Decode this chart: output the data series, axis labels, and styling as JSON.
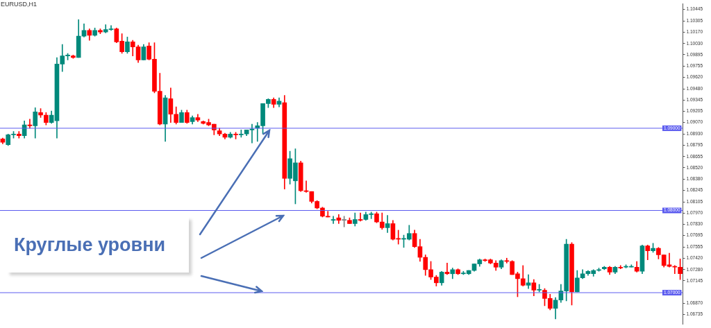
{
  "chart_data": {
    "type": "candlestick",
    "title": "EURUSD,H1",
    "categories": [
      null,
      null,
      null,
      null,
      null,
      null,
      null,
      null,
      null,
      null,
      null,
      null,
      null,
      null,
      null,
      null,
      null,
      null,
      null,
      null,
      null,
      null,
      null,
      null,
      null,
      null,
      null,
      null,
      null,
      null,
      null,
      null,
      null,
      null,
      null,
      null,
      null,
      null,
      null,
      null,
      null,
      null,
      null,
      null,
      null,
      null,
      null,
      null,
      null,
      null,
      null,
      null,
      null,
      null,
      null,
      null,
      null,
      null,
      null,
      null,
      null,
      null,
      null,
      null,
      null,
      null,
      null,
      null,
      null,
      null,
      null,
      null,
      null,
      null,
      null,
      null,
      null,
      null,
      null,
      null,
      null,
      null,
      null,
      null,
      null,
      null,
      null,
      null,
      null,
      null,
      null,
      null,
      null,
      null,
      null,
      null,
      null,
      null,
      null,
      null,
      null,
      null,
      null,
      null,
      null,
      null,
      null,
      null,
      null,
      null,
      null,
      null,
      null,
      null,
      null,
      null,
      null,
      null,
      null,
      null,
      null,
      null,
      null,
      null,
      null,
      null
    ],
    "ohlc": [
      [
        1.0887,
        1.0888,
        1.0881,
        1.0883
      ],
      [
        1.088,
        1.0893,
        1.0879,
        1.0892
      ],
      [
        1.0892,
        1.0896,
        1.0888,
        1.0893
      ],
      [
        1.0893,
        1.0896,
        1.0888,
        1.0891
      ],
      [
        1.0891,
        1.0909,
        1.0888,
        1.0904
      ],
      [
        1.0904,
        1.0911,
        1.09,
        1.0903
      ],
      [
        1.0903,
        1.0925,
        1.0888,
        1.092
      ],
      [
        1.0919,
        1.0924,
        1.0913,
        1.0916
      ],
      [
        1.0916,
        1.0919,
        1.0904,
        1.0907
      ],
      [
        1.0907,
        1.0921,
        1.0906,
        1.0916
      ],
      [
        1.0909,
        1.0986,
        1.0888,
        1.0978
      ],
      [
        1.0978,
        1.1002,
        1.0969,
        1.0988
      ],
      [
        1.0988,
        1.0991,
        1.0983,
        1.0989
      ],
      [
        1.0988,
        1.0989,
        1.0985,
        1.0986
      ],
      [
        1.0986,
        1.1032,
        1.0986,
        1.1012
      ],
      [
        1.1012,
        1.1027,
        1.1011,
        1.1019
      ],
      [
        1.1019,
        1.1021,
        1.1007,
        1.1013
      ],
      [
        1.1013,
        1.1022,
        1.1012,
        1.1019
      ],
      [
        1.1019,
        1.1021,
        1.1015,
        1.1017
      ],
      [
        1.1017,
        1.1026,
        1.1016,
        1.102
      ],
      [
        1.102,
        1.1025,
        1.1019,
        1.1021
      ],
      [
        1.1021,
        1.1022,
        1.1004,
        1.1005
      ],
      [
        1.1006,
        1.1015,
        1.0991,
        1.0993
      ],
      [
        1.0993,
        1.1011,
        1.0991,
        1.1005
      ],
      [
        1.1005,
        1.1007,
        1.0988,
        1.0999
      ],
      [
        1.0999,
        1.1001,
        1.098,
        1.0983
      ],
      [
        1.0983,
        1.1002,
        1.0983,
        1.0999
      ],
      [
        1.1,
        1.1004,
        1.0983,
        1.0984
      ],
      [
        1.0984,
        1.1004,
        1.0943,
        1.0945
      ],
      [
        1.0945,
        1.0967,
        1.0904,
        1.0905
      ],
      [
        1.0905,
        1.094,
        1.0884,
        1.0937
      ],
      [
        1.0936,
        1.0949,
        1.0907,
        1.0917
      ],
      [
        1.0917,
        1.0926,
        1.0905,
        1.0907
      ],
      [
        1.0907,
        1.0922,
        1.0907,
        1.0919
      ],
      [
        1.0919,
        1.0922,
        1.0906,
        1.0907
      ],
      [
        1.0908,
        1.0915,
        1.0905,
        1.0913
      ],
      [
        1.0913,
        1.0917,
        1.0908,
        1.091
      ],
      [
        1.0908,
        1.0909,
        1.0905,
        1.0906
      ],
      [
        1.0907,
        1.0911,
        1.0903,
        1.0904
      ],
      [
        1.0905,
        1.0905,
        1.0892,
        1.0898
      ],
      [
        1.0897,
        1.09,
        1.0891,
        1.0893
      ],
      [
        1.0893,
        1.0894,
        1.0887,
        1.0889
      ],
      [
        1.0889,
        1.0895,
        1.0888,
        1.0893
      ],
      [
        1.0893,
        1.0895,
        1.0887,
        1.0892
      ],
      [
        1.0892,
        1.0898,
        1.0889,
        1.0893
      ],
      [
        1.0893,
        1.0898,
        1.0891,
        1.0898
      ],
      [
        1.0898,
        1.0905,
        1.0882,
        1.0899
      ],
      [
        1.09,
        1.0907,
        1.0884,
        1.0903
      ],
      [
        1.0903,
        1.093,
        1.0893,
        1.093
      ],
      [
        1.093,
        1.0936,
        1.0925,
        1.0935
      ],
      [
        1.0935,
        1.0937,
        1.0925,
        1.0929
      ],
      [
        1.0929,
        1.0937,
        1.0926,
        1.0933
      ],
      [
        1.0931,
        1.094,
        1.0826,
        1.0839
      ],
      [
        1.0839,
        1.0872,
        1.0832,
        1.0863
      ],
      [
        1.0836,
        1.0875,
        1.0808,
        1.0858
      ],
      [
        1.0858,
        1.086,
        1.0823,
        1.0824
      ],
      [
        1.0824,
        1.0836,
        1.0822,
        1.0823
      ],
      [
        1.0823,
        1.0823,
        1.0809,
        1.0811
      ],
      [
        1.0811,
        1.0812,
        1.0802,
        1.0803
      ],
      [
        1.0803,
        1.0804,
        1.0792,
        1.0793
      ],
      [
        1.0793,
        1.0799,
        1.0792,
        1.0792
      ],
      [
        1.0788,
        1.0793,
        1.0784,
        1.0789
      ],
      [
        1.0791,
        1.0795,
        1.0784,
        1.0788
      ],
      [
        1.0788,
        1.0793,
        1.078,
        1.0789
      ],
      [
        1.0788,
        1.0791,
        1.0784,
        1.0784
      ],
      [
        1.0784,
        1.0797,
        1.0781,
        1.0789
      ],
      [
        1.0789,
        1.0797,
        1.0787,
        1.0788
      ],
      [
        1.0789,
        1.0798,
        1.0788,
        1.0795
      ],
      [
        1.0795,
        1.0798,
        1.079,
        1.0796
      ],
      [
        1.0796,
        1.0798,
        1.0785,
        1.0786
      ],
      [
        1.0786,
        1.0797,
        1.0777,
        1.0779
      ],
      [
        1.0779,
        1.0794,
        1.0773,
        1.0784
      ],
      [
        1.0784,
        1.0788,
        1.0764,
        1.0765
      ],
      [
        1.0766,
        1.0776,
        1.0759,
        1.0765
      ],
      [
        1.0765,
        1.077,
        1.0755,
        1.0766
      ],
      [
        1.0765,
        1.0782,
        1.0764,
        1.0772
      ],
      [
        1.0772,
        1.0776,
        1.0755,
        1.0756
      ],
      [
        1.0756,
        1.0765,
        1.0738,
        1.0743
      ],
      [
        1.0743,
        1.0746,
        1.0721,
        1.0728
      ],
      [
        1.0728,
        1.0738,
        1.0716,
        1.0719
      ],
      [
        1.0719,
        1.0721,
        1.0708,
        1.0712
      ],
      [
        1.0712,
        1.0726,
        1.0709,
        1.0725
      ],
      [
        1.0725,
        1.0736,
        1.0722,
        1.0723
      ],
      [
        1.0723,
        1.073,
        1.0717,
        1.0728
      ],
      [
        1.0728,
        1.0729,
        1.0722,
        1.0723
      ],
      [
        1.0723,
        1.0726,
        1.0722,
        1.0724
      ],
      [
        1.0723,
        1.0727,
        1.0722,
        1.0727
      ],
      [
        1.0727,
        1.0735,
        1.0726,
        1.0735
      ],
      [
        1.0735,
        1.0741,
        1.0732,
        1.074
      ],
      [
        1.074,
        1.0741,
        1.0738,
        1.0739
      ],
      [
        1.074,
        1.0741,
        1.0735,
        1.0736
      ],
      [
        1.0736,
        1.0739,
        1.0727,
        1.0731
      ],
      [
        1.0731,
        1.074,
        1.0729,
        1.0739
      ],
      [
        1.0739,
        1.0742,
        1.0736,
        1.0738
      ],
      [
        1.0738,
        1.0739,
        1.0722,
        1.0722
      ],
      [
        1.0723,
        1.0725,
        1.0695,
        1.0717
      ],
      [
        1.0717,
        1.0733,
        1.0708,
        1.0709
      ],
      [
        1.0709,
        1.0722,
        1.0705,
        1.0712
      ],
      [
        1.0712,
        1.0716,
        1.0696,
        1.0703
      ],
      [
        1.0703,
        1.071,
        1.0701,
        1.0704
      ],
      [
        1.0703,
        1.0705,
        1.0684,
        1.0693
      ],
      [
        1.0693,
        1.0698,
        1.0679,
        1.0681
      ],
      [
        1.0681,
        1.0694,
        1.0668,
        1.0691
      ],
      [
        1.0691,
        1.071,
        1.0688,
        1.0702
      ],
      [
        1.0702,
        1.0765,
        1.069,
        1.0759
      ],
      [
        1.0759,
        1.0761,
        1.0685,
        1.0701
      ],
      [
        1.0701,
        1.0727,
        1.0701,
        1.0718
      ],
      [
        1.0718,
        1.0728,
        1.0717,
        1.0723
      ],
      [
        1.0723,
        1.0727,
        1.0721,
        1.0726
      ],
      [
        1.0723,
        1.0728,
        1.072,
        1.0727
      ],
      [
        1.0727,
        1.073,
        1.0726,
        1.0728
      ],
      [
        1.0729,
        1.0732,
        1.0728,
        1.0731
      ],
      [
        1.0731,
        1.0732,
        1.0722,
        1.0725
      ],
      [
        1.0725,
        1.0732,
        1.0723,
        1.0731
      ],
      [
        1.0731,
        1.0733,
        1.0729,
        1.073
      ],
      [
        1.0731,
        1.0734,
        1.073,
        1.0732
      ],
      [
        1.0731,
        1.0734,
        1.0731,
        1.0732
      ],
      [
        1.0731,
        1.0738,
        1.0725,
        1.0726
      ],
      [
        1.0726,
        1.0758,
        1.0723,
        1.0757
      ],
      [
        1.0757,
        1.0758,
        1.074,
        1.0751
      ],
      [
        1.0751,
        1.076,
        1.0749,
        1.0754
      ],
      [
        1.0754,
        1.0755,
        1.0741,
        1.0746
      ],
      [
        1.0746,
        1.0746,
        1.0731,
        1.0733
      ],
      [
        1.0734,
        1.0748,
        1.0731,
        1.0732
      ],
      [
        1.0732,
        1.0733,
        1.0723,
        1.0731
      ],
      [
        1.0731,
        1.0741,
        1.0716,
        1.0723
      ]
    ],
    "colors": [
      "#ff0000",
      "#00897b",
      "#00897b",
      "#ff0000",
      "#00897b",
      "#ff0000",
      "#00897b",
      "#ff0000",
      "#ff0000",
      "#00897b",
      "#00897b",
      "#00897b",
      "#00897b",
      "#ff0000",
      "#00897b",
      "#00897b",
      "#ff0000",
      "#00897b",
      "#ff0000",
      "#00897b",
      "#00897b",
      "#ff0000",
      "#ff0000",
      "#00897b",
      "#ff0000",
      "#ff0000",
      "#00897b",
      "#ff0000",
      "#ff0000",
      "#ff0000",
      "#00897b",
      "#ff0000",
      "#ff0000",
      "#00897b",
      "#ff0000",
      "#00897b",
      "#ff0000",
      "#ff0000",
      "#ff0000",
      "#ff0000",
      "#ff0000",
      "#ff0000",
      "#00897b",
      "#ff0000",
      "#00897b",
      "#00897b",
      "#00897b",
      "#00897b",
      "#00897b",
      "#00897b",
      "#ff0000",
      "#00897b",
      "#ff0000",
      "#00897b",
      "#00897b",
      "#ff0000",
      "#ff0000",
      "#ff0000",
      "#ff0000",
      "#ff0000",
      "#ff0000",
      "#00897b",
      "#ff0000",
      "#808080",
      "#ff0000",
      "#00897b",
      "#ff0000",
      "#00897b",
      "#00897b",
      "#ff0000",
      "#ff0000",
      "#00897b",
      "#ff0000",
      "#ff0000",
      "#00897b",
      "#00897b",
      "#ff0000",
      "#ff0000",
      "#ff0000",
      "#ff0000",
      "#ff0000",
      "#00897b",
      "#ff0000",
      "#00897b",
      "#ff0000",
      "#00897b",
      "#00897b",
      "#00897b",
      "#00897b",
      "#ff0000",
      "#ff0000",
      "#ff0000",
      "#00897b",
      "#ff0000",
      "#ff0000",
      "#ff0000",
      "#ff0000",
      "#00897b",
      "#ff0000",
      "#00897b",
      "#ff0000",
      "#ff0000",
      "#00897b",
      "#00897b",
      "#00897b",
      "#ff0000",
      "#00897b",
      "#00897b",
      "#00897b",
      "#00897b",
      "#00897b",
      "#00897b",
      "#ff0000",
      "#00897b",
      "#ff0000",
      "#00897b",
      "#00897b",
      "#ff0000",
      "#00897b",
      "#ff0000",
      "#00897b",
      "#ff0000",
      "#ff0000",
      "#ff0000",
      "#ff0000",
      "#ff0000"
    ],
    "ylim": [
      1.0662,
      1.1051
    ],
    "yticks": [
      1.10445,
      1.10305,
      {
        "value": 1.1017,
        "label": "1.10170"
      },
      {
        "value": 1.1003,
        "label": "1.10030"
      },
      1.09895,
      1.09755,
      {
        "value": 1.0962,
        "label": "1.09620"
      },
      {
        "value": 1.0948,
        "label": "1.09480"
      },
      1.09345,
      1.09205,
      {
        "value": 1.0907,
        "label": "1.09070"
      },
      {
        "value": 1.0893,
        "label": "1.08930"
      },
      1.08795,
      1.08655,
      {
        "value": 1.0852,
        "label": "1.08520"
      },
      {
        "value": 1.0838,
        "label": "1.08380"
      },
      1.08245,
      1.08105,
      {
        "value": 1.0797,
        "label": "1.07970"
      },
      {
        "value": 1.0783,
        "label": "1.07830"
      },
      1.07695,
      1.07555,
      {
        "value": 1.0742,
        "label": "1.07420"
      },
      {
        "value": 1.0728,
        "label": "1.07280"
      },
      1.07145,
      {
        "value": 1.0687,
        "label": "1.06870"
      },
      1.06735
    ],
    "tick_labels": "y",
    "ref_lines": [
      {
        "axis": "y",
        "value": 1.09,
        "label": "1.09000",
        "color": "#5b5bef"
      },
      {
        "axis": "y",
        "value": 1.08,
        "label": "1.08000",
        "color": "#5b5bef"
      },
      {
        "axis": "y",
        "value": 1.07,
        "label": "1.07000",
        "color": "#5b5bef"
      }
    ],
    "annotations": [
      "Круглые уровни"
    ]
  }
}
